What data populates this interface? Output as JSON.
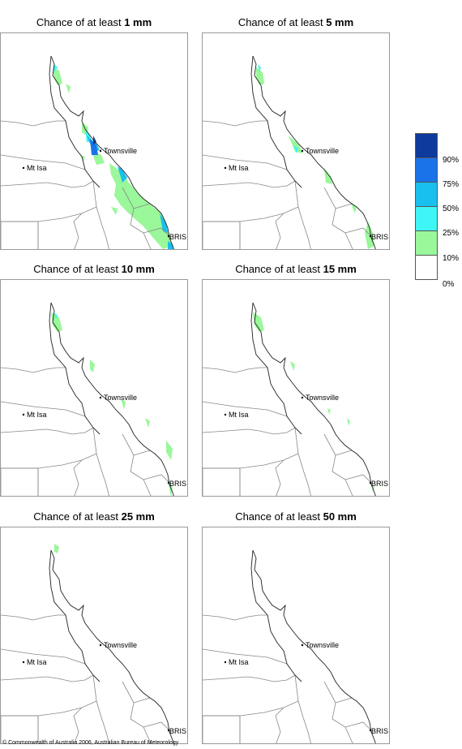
{
  "panels": [
    {
      "prefix": "Chance of at least ",
      "amount": "1 mm"
    },
    {
      "prefix": "Chance of at least ",
      "amount": "5 mm"
    },
    {
      "prefix": "Chance of at least ",
      "amount": "10 mm"
    },
    {
      "prefix": "Chance of at least ",
      "amount": "15 mm"
    },
    {
      "prefix": "Chance of at least ",
      "amount": "25 mm"
    },
    {
      "prefix": "Chance of at least ",
      "amount": "50 mm"
    }
  ],
  "places": {
    "townsville": "Townsville",
    "mt_isa": "Mt Isa",
    "brisbane": "BRIS"
  },
  "legend": {
    "labels": [
      "90%",
      "75%",
      "50%",
      "25%",
      "10%",
      "0%"
    ],
    "colors": [
      "#0d3a9c",
      "#1a73e8",
      "#19c0ee",
      "#3ff5f5",
      "#9af79a",
      "#ffffff"
    ]
  },
  "copyright": "© Commonwealth of Australia 2006, Australian Bureau of Meteorology"
}
